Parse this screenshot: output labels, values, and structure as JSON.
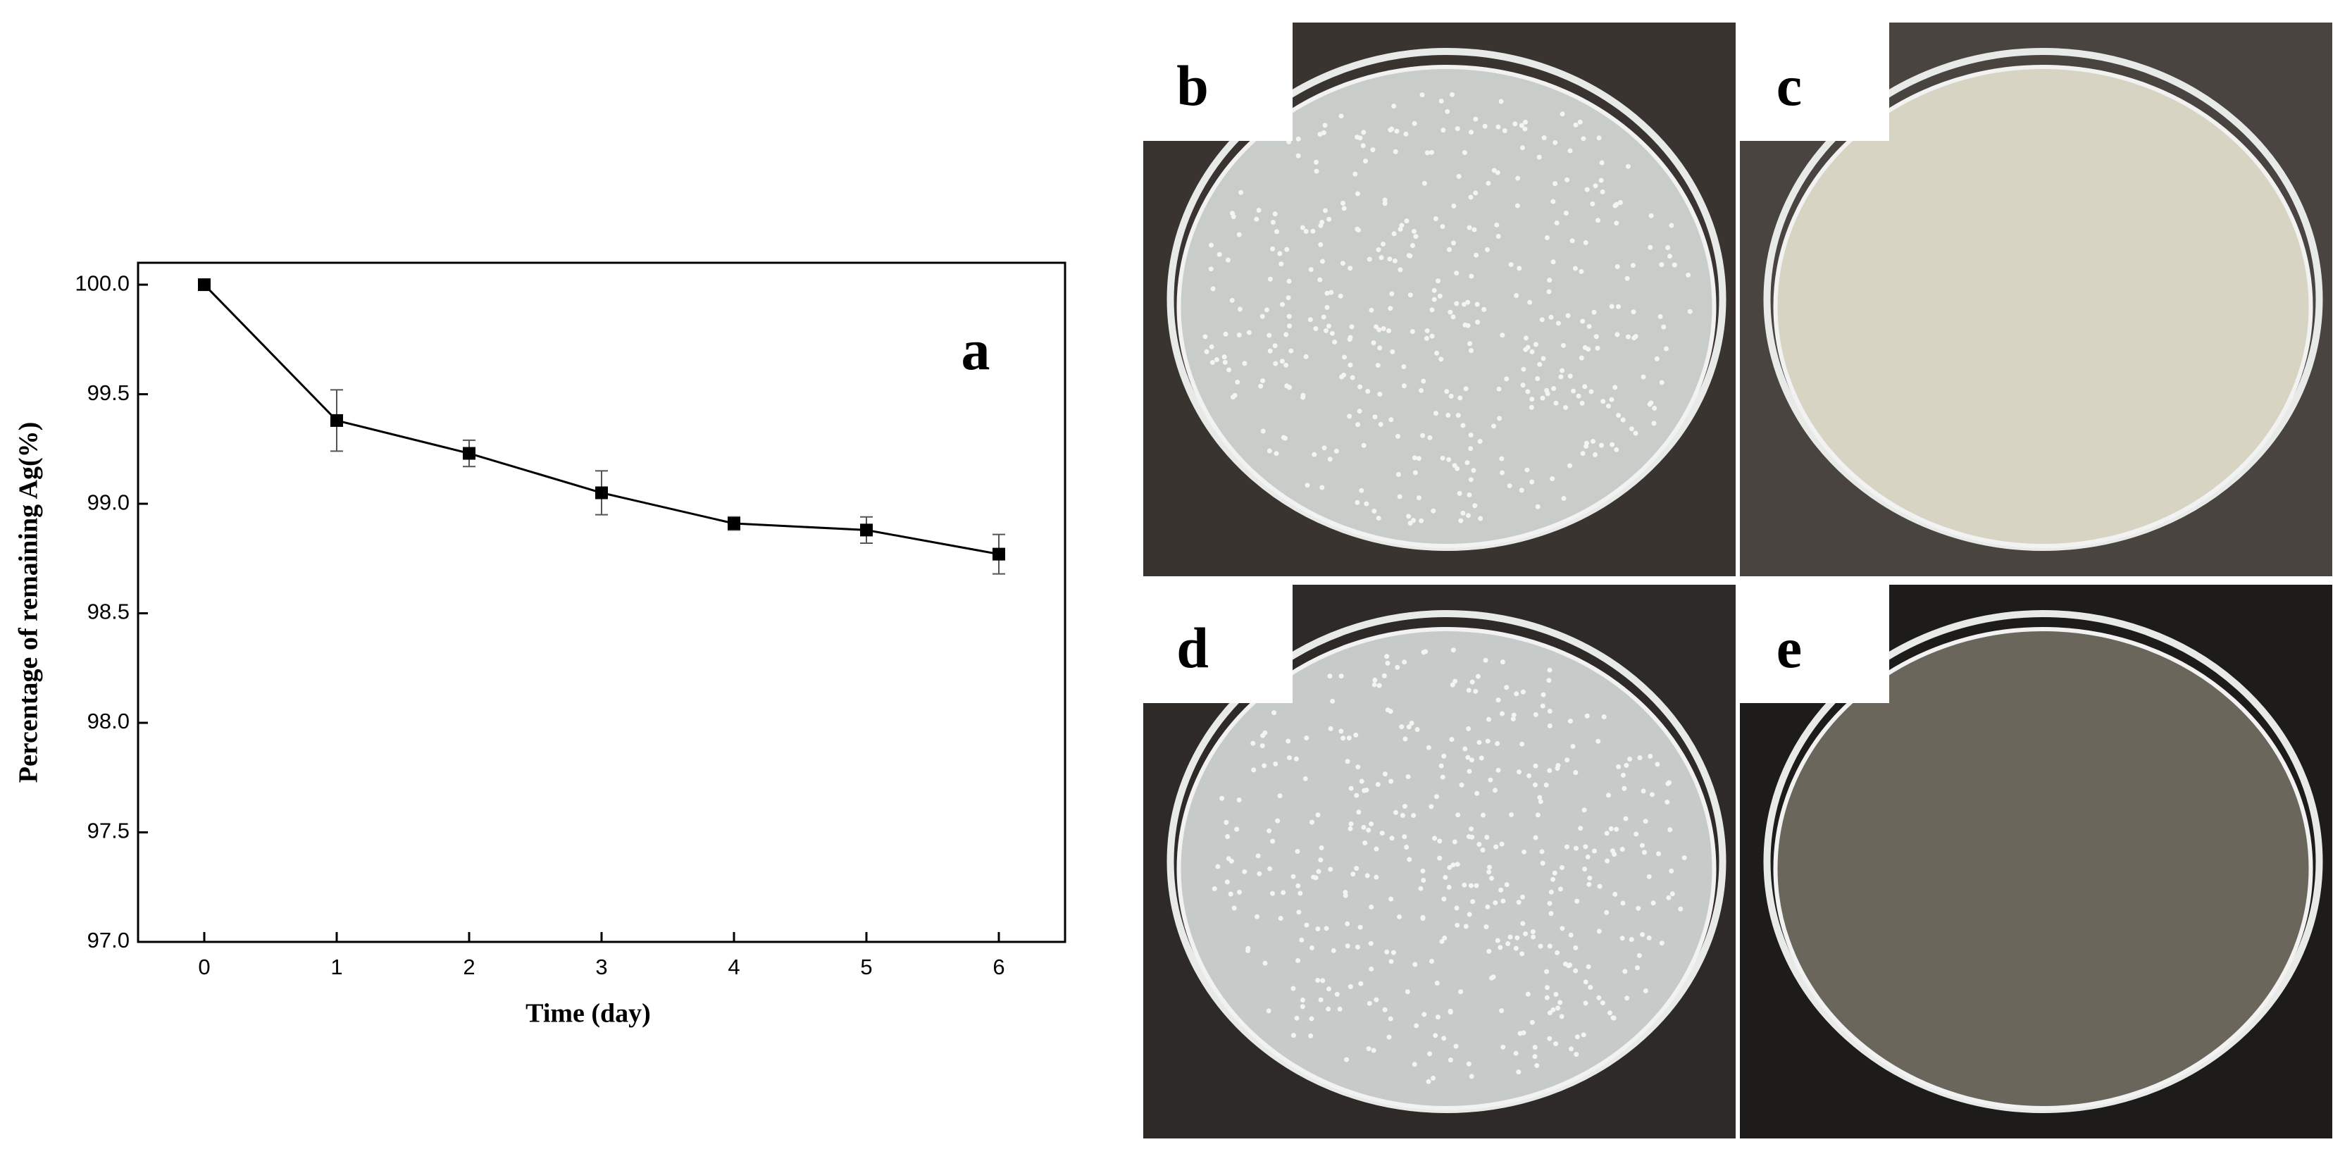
{
  "chart_data": {
    "type": "line",
    "xlabel": "Time (day)",
    "ylabel": "Percentage of remaining Ag(%)",
    "annotation": "a",
    "x": [
      0,
      1,
      2,
      3,
      4,
      5,
      6
    ],
    "values": [
      100.0,
      99.38,
      99.23,
      99.05,
      98.91,
      98.88,
      98.77
    ],
    "errors": [
      0,
      0.14,
      0.06,
      0.1,
      0.03,
      0.06,
      0.09
    ],
    "color": "#000000",
    "xlim": [
      -0.5,
      6.5
    ],
    "xticks": [
      0,
      1,
      2,
      3,
      4,
      5,
      6
    ],
    "ylim": [
      97,
      100.1
    ],
    "yticks": [
      {
        "value": 97,
        "label": "97.0"
      },
      {
        "value": 97.5,
        "label": "97.5"
      },
      {
        "value": 98,
        "label": "98.0"
      },
      {
        "value": 98.5,
        "label": "98.5"
      },
      {
        "value": 99,
        "label": "99.0"
      },
      {
        "value": 99.5,
        "label": "99.5"
      },
      {
        "value": 100,
        "label": "100.0"
      }
    ]
  },
  "panels": [
    "b",
    "c",
    "d",
    "e"
  ]
}
